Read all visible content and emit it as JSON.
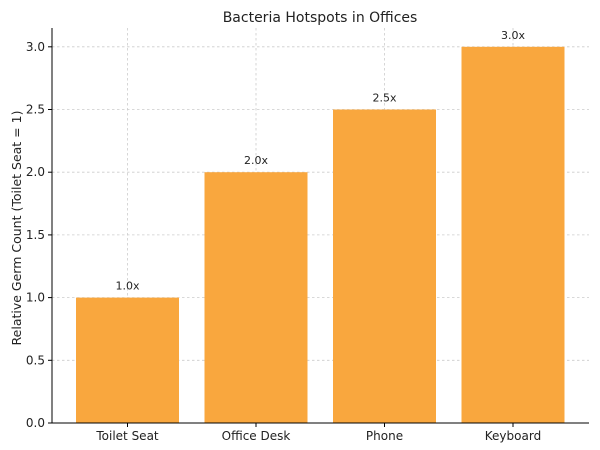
{
  "chart_data": {
    "type": "bar",
    "title": "Bacteria Hotspots in Offices",
    "xlabel": "",
    "ylabel": "Relative Germ Count (Toilet Seat = 1)",
    "categories": [
      "Toilet Seat",
      "Office Desk",
      "Phone",
      "Keyboard"
    ],
    "values": [
      1.0,
      2.0,
      2.5,
      3.0
    ],
    "data_labels": [
      "1.0x",
      "2.0x",
      "2.5x",
      "3.0x"
    ],
    "ylim": [
      0,
      3.15
    ],
    "yticks": [
      0.0,
      0.5,
      1.0,
      1.5,
      2.0,
      2.5,
      3.0
    ],
    "ytick_labels": [
      "0.0",
      "0.5",
      "1.0",
      "1.5",
      "2.0",
      "2.5",
      "3.0"
    ],
    "grid": true,
    "bar_color": "#F9A73E"
  }
}
